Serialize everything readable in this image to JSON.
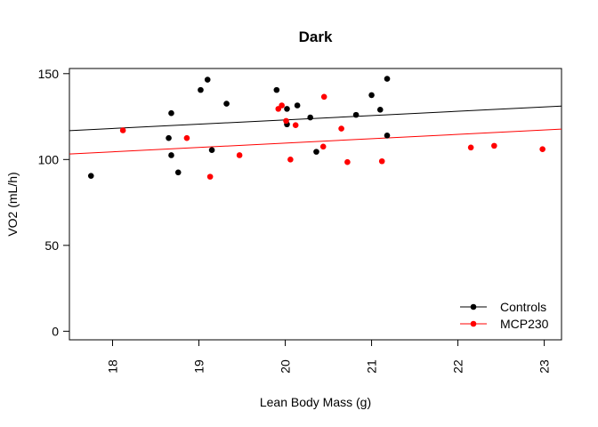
{
  "chart_data": {
    "type": "scatter",
    "title": "Dark",
    "xlabel": "Lean Body Mass (g)",
    "ylabel": "VO2 (mL/h)",
    "xlim": [
      17.5,
      23.2
    ],
    "ylim": [
      -5,
      153
    ],
    "xticks": [
      18,
      19,
      20,
      21,
      22,
      23
    ],
    "yticks": [
      0,
      50,
      100,
      150
    ],
    "x_tick_rotation": "vertical",
    "grid": false,
    "legend": "bottom-right",
    "series": [
      {
        "name": "Controls",
        "color": "#000000",
        "points": [
          {
            "x": 17.75,
            "y": 90.5
          },
          {
            "x": 18.65,
            "y": 112.5
          },
          {
            "x": 18.68,
            "y": 127
          },
          {
            "x": 18.68,
            "y": 102.5
          },
          {
            "x": 18.76,
            "y": 92.5
          },
          {
            "x": 19.02,
            "y": 140.5
          },
          {
            "x": 19.1,
            "y": 146.5
          },
          {
            "x": 19.15,
            "y": 105.5
          },
          {
            "x": 19.32,
            "y": 132.5
          },
          {
            "x": 19.9,
            "y": 140.5
          },
          {
            "x": 20.02,
            "y": 129.5
          },
          {
            "x": 20.02,
            "y": 120.5
          },
          {
            "x": 20.14,
            "y": 131.5
          },
          {
            "x": 20.29,
            "y": 124.5
          },
          {
            "x": 20.36,
            "y": 104.5
          },
          {
            "x": 20.82,
            "y": 126
          },
          {
            "x": 21.0,
            "y": 137.5
          },
          {
            "x": 21.1,
            "y": 129
          },
          {
            "x": 21.18,
            "y": 147
          },
          {
            "x": 21.18,
            "y": 114
          }
        ],
        "fit": {
          "x": [
            17.5,
            23.2
          ],
          "y": [
            116.8,
            131.1
          ]
        }
      },
      {
        "name": "MCP230",
        "color": "#ff0000",
        "points": [
          {
            "x": 18.12,
            "y": 117
          },
          {
            "x": 18.86,
            "y": 112.5
          },
          {
            "x": 19.13,
            "y": 90
          },
          {
            "x": 19.47,
            "y": 102.5
          },
          {
            "x": 19.92,
            "y": 129.5
          },
          {
            "x": 19.96,
            "y": 131.5
          },
          {
            "x": 20.01,
            "y": 122.5
          },
          {
            "x": 20.06,
            "y": 100
          },
          {
            "x": 20.12,
            "y": 120
          },
          {
            "x": 20.44,
            "y": 107.5
          },
          {
            "x": 20.45,
            "y": 136.5
          },
          {
            "x": 20.65,
            "y": 118
          },
          {
            "x": 20.72,
            "y": 98.5
          },
          {
            "x": 21.12,
            "y": 99
          },
          {
            "x": 22.15,
            "y": 107
          },
          {
            "x": 22.42,
            "y": 108
          },
          {
            "x": 22.98,
            "y": 106
          }
        ],
        "fit": {
          "x": [
            17.5,
            23.2
          ],
          "y": [
            103.2,
            117.7
          ]
        }
      }
    ]
  }
}
